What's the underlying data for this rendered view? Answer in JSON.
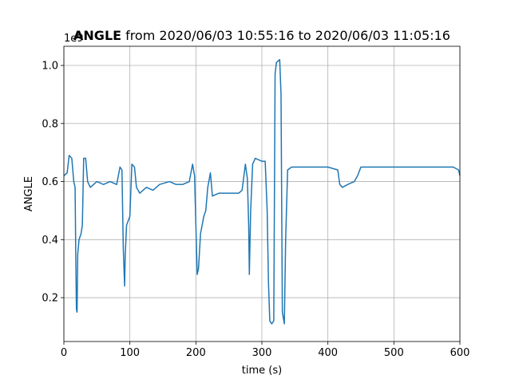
{
  "chart_data": {
    "type": "line",
    "title_bold": "ANGLE",
    "title": "from 2020/06/03 10:55:16 to 2020/06/03 11:05:16",
    "x_label": "time (s)",
    "y_label": "ANGLE",
    "y_offset_label": "1e9",
    "x": [
      0,
      5,
      8,
      12,
      15,
      17,
      18,
      19,
      20,
      21,
      23,
      26,
      28,
      30,
      33,
      36,
      40,
      50,
      60,
      70,
      80,
      85,
      88,
      90,
      92,
      93,
      95,
      100,
      103,
      107,
      110,
      115,
      125,
      135,
      145,
      160,
      170,
      180,
      190,
      195,
      198,
      200,
      202,
      204,
      207,
      212,
      215,
      218,
      222,
      225,
      235,
      250,
      265,
      270,
      275,
      278,
      280,
      281,
      283,
      286,
      290,
      300,
      305,
      308,
      310,
      312,
      315,
      318,
      320,
      322,
      327,
      329,
      331,
      334,
      336,
      339,
      345,
      360,
      380,
      400,
      415,
      418,
      422,
      430,
      440,
      445,
      450,
      470,
      500,
      530,
      560,
      590,
      598,
      600
    ],
    "series": [
      {
        "name": "ANGLE",
        "color": "#1f77b4",
        "values": [
          0.62,
          0.63,
          0.69,
          0.68,
          0.6,
          0.58,
          0.35,
          0.16,
          0.15,
          0.35,
          0.4,
          0.42,
          0.45,
          0.68,
          0.68,
          0.6,
          0.58,
          0.6,
          0.59,
          0.6,
          0.59,
          0.65,
          0.64,
          0.37,
          0.24,
          0.35,
          0.45,
          0.48,
          0.66,
          0.65,
          0.58,
          0.56,
          0.58,
          0.57,
          0.59,
          0.6,
          0.59,
          0.59,
          0.6,
          0.66,
          0.62,
          0.45,
          0.28,
          0.3,
          0.42,
          0.48,
          0.5,
          0.58,
          0.63,
          0.55,
          0.56,
          0.56,
          0.56,
          0.57,
          0.66,
          0.61,
          0.45,
          0.28,
          0.5,
          0.66,
          0.68,
          0.67,
          0.67,
          0.5,
          0.25,
          0.12,
          0.11,
          0.12,
          0.97,
          1.01,
          1.02,
          0.9,
          0.15,
          0.11,
          0.4,
          0.64,
          0.65,
          0.65,
          0.65,
          0.65,
          0.64,
          0.59,
          0.58,
          0.59,
          0.6,
          0.62,
          0.65,
          0.65,
          0.65,
          0.65,
          0.65,
          0.65,
          0.64,
          0.62
        ]
      }
    ],
    "xlim": [
      0,
      600
    ],
    "xticks": [
      0,
      100,
      200,
      300,
      400,
      500,
      600
    ],
    "ylim": [
      0.049,
      1.066
    ],
    "yticks": [
      0.2,
      0.4,
      0.6,
      0.8,
      {
        "value": 1,
        "label": "1.0"
      }
    ],
    "grid": true
  }
}
